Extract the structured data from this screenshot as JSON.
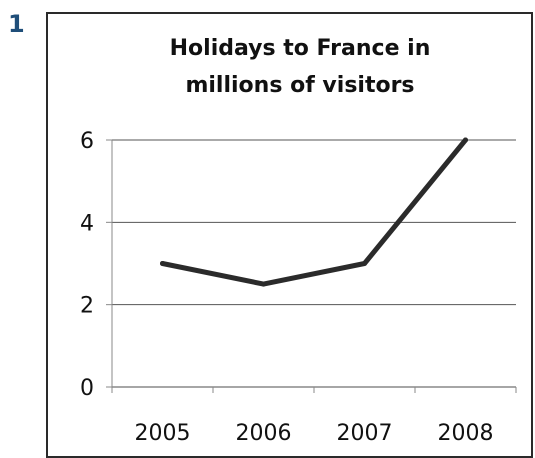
{
  "figure_number": "1",
  "chart_data": {
    "type": "line",
    "title": [
      "Holidays to France in",
      "millions of visitors"
    ],
    "categories": [
      "2005",
      "2006",
      "2007",
      "2008"
    ],
    "series": [
      {
        "values": [
          3,
          2.5,
          3,
          6
        ]
      }
    ],
    "ylim": [
      0,
      6
    ],
    "yticks": [
      0,
      2,
      4,
      6
    ],
    "grid": true,
    "colors": {
      "line": "#2b2b2b",
      "grid": "#555555",
      "axis": "#888888"
    }
  }
}
